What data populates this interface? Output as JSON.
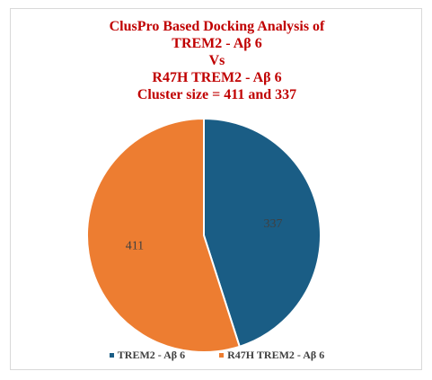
{
  "chart_data": {
    "type": "pie",
    "title_lines": [
      "ClusPro Based Docking Analysis of",
      "TREM2 - Aβ 6",
      "Vs",
      "R47H TREM2 - Aβ 6",
      "Cluster size = 411 and 337"
    ],
    "categories": [
      "TREM2 - Aβ 6",
      "R47H TREM2 - Aβ 6"
    ],
    "values": [
      337,
      411
    ],
    "data_labels": [
      "337",
      "411"
    ],
    "colors": [
      "#1a5d85",
      "#ed7d31"
    ],
    "legend_position": "bottom",
    "start_angle_deg": 0,
    "direction": "clockwise"
  }
}
